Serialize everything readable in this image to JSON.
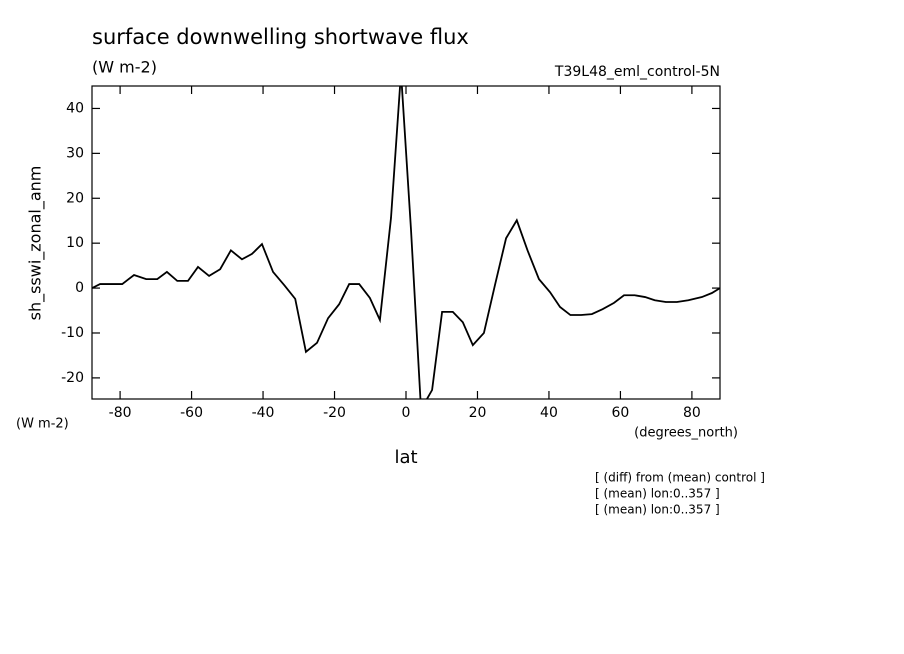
{
  "chart_data": {
    "type": "line",
    "title": "surface downwelling shortwave flux",
    "subtitle": "(W m-2)",
    "dataset": "T39L48_eml_control-5N",
    "y_label": "sh_sswi_zonal_anm",
    "y_units": "(W m-2)",
    "x_label": "lat",
    "x_units": "(degrees_north)",
    "notes": [
      "[ (diff) from (mean) control ]",
      "[ (mean) lon:0..357 ]",
      "[ (mean) lon:0..357 ]"
    ],
    "xlim": [
      -87.86,
      87.86
    ],
    "ylim": [
      -24.7,
      45
    ],
    "xticks": [
      -80,
      -60,
      -40,
      -20,
      0,
      20,
      40,
      60,
      80
    ],
    "yticks": [
      -20,
      -10,
      0,
      10,
      20,
      30,
      40
    ],
    "x": [
      -87.86,
      -85.6,
      -82.8,
      -79.4,
      -76.1,
      -72.7,
      -69.6,
      -66.9,
      -64,
      -61,
      -58.2,
      -55.1,
      -52,
      -49,
      -45.9,
      -43.1,
      -40.3,
      -37.2,
      -34,
      -31,
      -28,
      -24.9,
      -21.8,
      -18.7,
      -15.9,
      -13.1,
      -10.1,
      -7.3,
      -4.2,
      -1.4,
      1.4,
      4.2,
      7.3,
      10.1,
      13.1,
      15.9,
      18.7,
      21.8,
      24.9,
      28,
      31,
      34,
      37.2,
      40.3,
      43.1,
      46,
      49,
      52,
      55,
      58.2,
      61,
      64,
      66.9,
      69.6,
      72.7,
      75.8,
      79,
      82.8,
      85.6,
      87.86
    ],
    "series": [
      {
        "color": "#000000",
        "values": [
          0,
          0.9,
          0.9,
          0.9,
          2.9,
          2,
          2,
          3.6,
          1.6,
          1.6,
          4.7,
          2.7,
          4.2,
          8.4,
          6.4,
          7.6,
          9.8,
          3.6,
          0.6,
          -2.4,
          -14.2,
          -12.2,
          -6.7,
          -3.6,
          0.9,
          0.9,
          -2.2,
          -7.1,
          15.6,
          48,
          13,
          -27,
          -22.7,
          -5.3,
          -5.3,
          -7.6,
          -12.7,
          -10,
          0.7,
          11.1,
          15.1,
          8.4,
          2,
          -0.9,
          -4.2,
          -6,
          -6,
          -5.8,
          -4.7,
          -3.3,
          -1.6,
          -1.6,
          -2,
          -2.7,
          -3.1,
          -3.1,
          -2.7,
          -2,
          -1.1,
          0
        ]
      }
    ]
  }
}
